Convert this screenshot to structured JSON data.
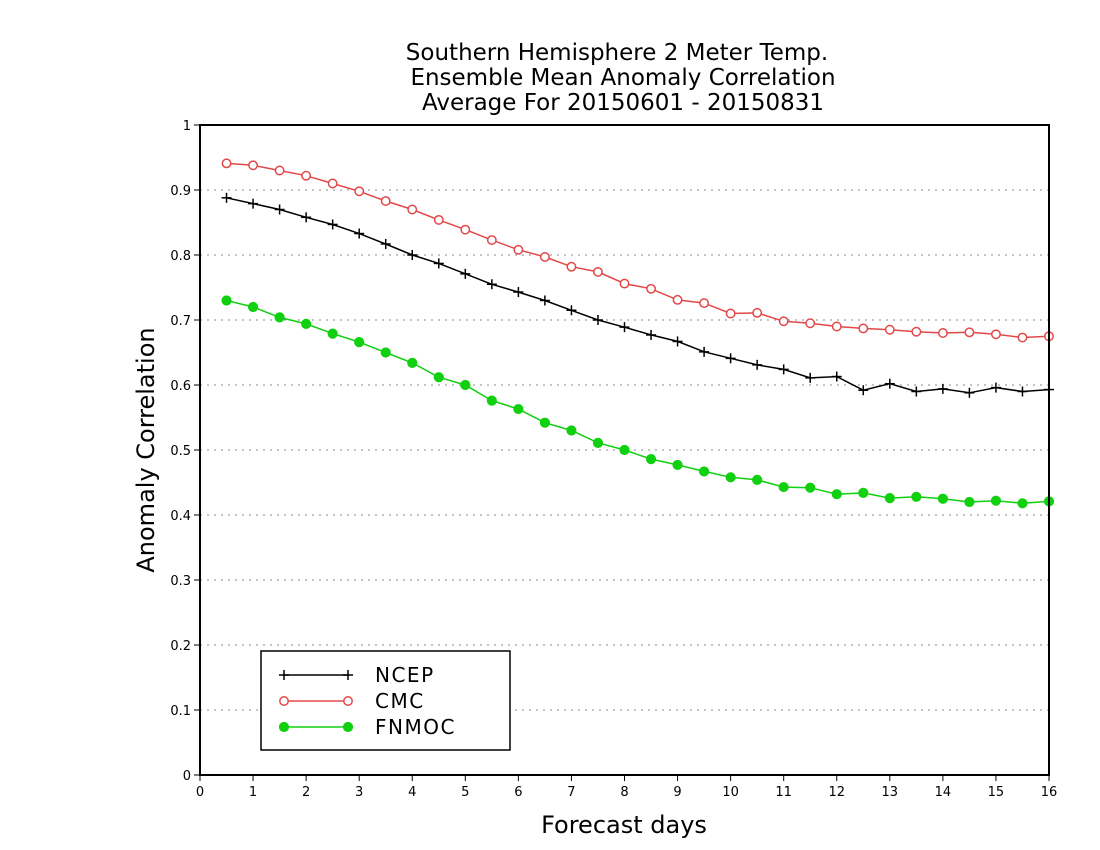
{
  "chart_data": {
    "type": "line",
    "title": [
      "Southern Hemisphere 2 Meter Temp.",
      "Ensemble Mean Anomaly Correlation",
      "Average For 20150601 - 20150831"
    ],
    "xlabel": "Forecast days",
    "ylabel": "Anomaly Correlation",
    "xlim": [
      0,
      16
    ],
    "ylim": [
      0,
      1
    ],
    "xticks": [
      "0",
      "1",
      "2",
      "3",
      "4",
      "5",
      "6",
      "7",
      "8",
      "9",
      "10",
      "11",
      "12",
      "13",
      "14",
      "15",
      "16"
    ],
    "yticks": [
      "0",
      "0.1",
      "0.2",
      "0.3",
      "0.4",
      "0.5",
      "0.6",
      "0.7",
      "0.8",
      "0.9",
      "1"
    ],
    "grid": "horizontal dotted",
    "legend_position": "bottom-left",
    "x": [
      0.5,
      1,
      1.5,
      2,
      2.5,
      3,
      3.5,
      4,
      4.5,
      5,
      5.5,
      6,
      6.5,
      7,
      7.5,
      8,
      8.5,
      9,
      9.5,
      10,
      10.5,
      11,
      11.5,
      12,
      12.5,
      13,
      13.5,
      14,
      14.5,
      15,
      15.5,
      16
    ],
    "series": [
      {
        "name": "NCEP",
        "color": "#000000",
        "marker": "plus",
        "values": [
          0.888,
          0.879,
          0.87,
          0.858,
          0.847,
          0.833,
          0.817,
          0.8,
          0.787,
          0.771,
          0.755,
          0.743,
          0.73,
          0.715,
          0.7,
          0.689,
          0.677,
          0.667,
          0.651,
          0.641,
          0.631,
          0.624,
          0.611,
          0.613,
          0.592,
          0.602,
          0.59,
          0.594,
          0.588,
          0.596,
          0.59,
          0.593
        ]
      },
      {
        "name": "CMC",
        "color": "#e34848",
        "marker": "open-circle",
        "values": [
          0.941,
          0.938,
          0.93,
          0.922,
          0.91,
          0.898,
          0.883,
          0.87,
          0.854,
          0.839,
          0.823,
          0.808,
          0.797,
          0.782,
          0.774,
          0.756,
          0.748,
          0.731,
          0.726,
          0.71,
          0.711,
          0.698,
          0.695,
          0.69,
          0.687,
          0.685,
          0.682,
          0.68,
          0.681,
          0.678,
          0.673,
          0.675
        ]
      },
      {
        "name": "FNMOC",
        "color": "#10d010",
        "marker": "filled-circle",
        "values": [
          0.73,
          0.72,
          0.704,
          0.694,
          0.679,
          0.666,
          0.65,
          0.634,
          0.612,
          0.6,
          0.576,
          0.563,
          0.542,
          0.53,
          0.511,
          0.5,
          0.486,
          0.477,
          0.467,
          0.458,
          0.454,
          0.443,
          0.442,
          0.432,
          0.434,
          0.426,
          0.428,
          0.425,
          0.42,
          0.422,
          0.418,
          0.421
        ]
      }
    ]
  }
}
